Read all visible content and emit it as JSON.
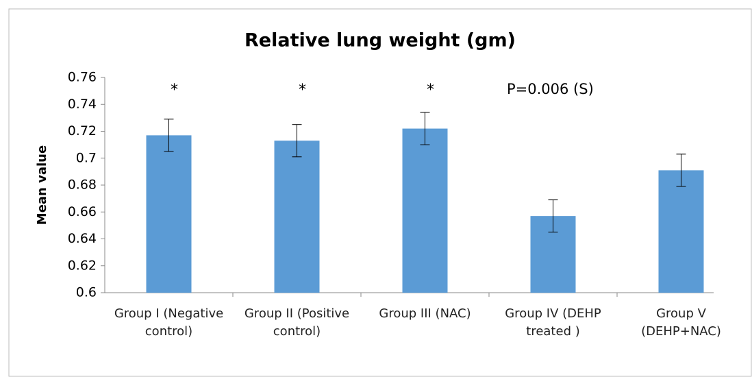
{
  "chart_data": {
    "type": "bar",
    "title": "Relative lung weight (gm)",
    "y_label": "Mean value",
    "categories": [
      "Group I (Negative control)",
      "Group II (Positive control)",
      "Group III (NAC)",
      "Group IV (DEHP treated )",
      "Group V (DEHP+NAC)"
    ],
    "values": [
      0.717,
      0.713,
      0.722,
      0.657,
      0.691
    ],
    "errors": [
      0.012,
      0.012,
      0.012,
      0.012,
      0.012
    ],
    "significance": [
      "*",
      "*",
      "*",
      null,
      null
    ],
    "annotation": "P=0.006 (S)",
    "color": "#5b9bd5",
    "ylim": [
      0.6,
      0.76
    ],
    "yticks": [
      0.6,
      0.62,
      0.64,
      0.66,
      0.68,
      0.7,
      0.72,
      0.74,
      0.76
    ],
    "grid": false
  }
}
